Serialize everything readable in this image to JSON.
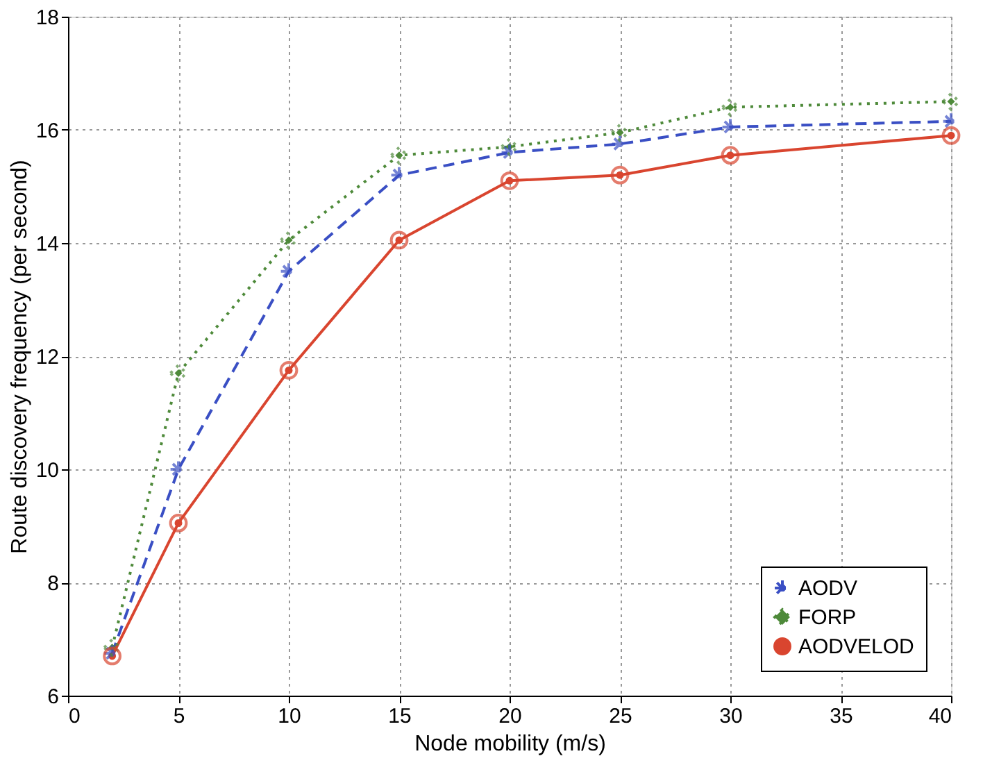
{
  "chart_data": {
    "type": "line",
    "xlabel": "Node mobility (m/s)",
    "ylabel": "Route discovery frequency (per second)",
    "x": [
      2,
      5,
      10,
      15,
      20,
      25,
      30,
      40
    ],
    "series": [
      {
        "name": "AODV",
        "color": "#3a4fc4",
        "marker": "cross",
        "line_style": "dashed",
        "values": [
          6.75,
          10.0,
          13.5,
          15.2,
          15.6,
          15.75,
          16.05,
          16.15
        ]
      },
      {
        "name": "FORP",
        "color": "#4e8a3a",
        "marker": "diamond",
        "line_style": "dotted",
        "values": [
          6.85,
          11.7,
          14.05,
          15.55,
          15.7,
          15.95,
          16.4,
          16.5
        ]
      },
      {
        "name": "AODVELOD",
        "color": "#d9452f",
        "marker": "circle",
        "line_style": "solid",
        "values": [
          6.7,
          9.05,
          11.75,
          14.05,
          15.1,
          15.2,
          15.55,
          15.9
        ]
      }
    ],
    "xlim": [
      0,
      40
    ],
    "xticks": [
      0,
      5,
      10,
      15,
      20,
      25,
      30,
      35,
      40
    ],
    "ylim": [
      6,
      18
    ],
    "yticks": [
      6,
      8,
      10,
      12,
      14,
      16,
      18
    ],
    "grid": true,
    "legend": "bottom right"
  }
}
